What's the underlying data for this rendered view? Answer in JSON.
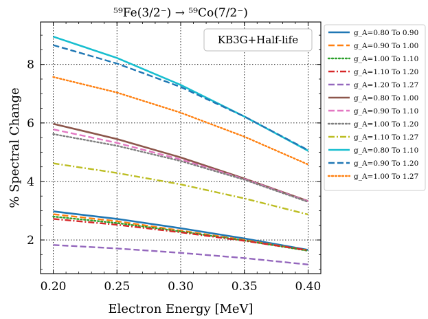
{
  "chart_data": {
    "type": "line",
    "title": "⁵⁹Fe(3/2⁻) → ⁵⁹Co(7/2⁻)",
    "xlabel": "Electron Energy [MeV]",
    "ylabel": "% Spectral Change",
    "xlim": [
      0.19,
      0.41
    ],
    "ylim": [
      0.85,
      9.45
    ],
    "xticks": [
      0.2,
      0.25,
      0.3,
      0.35,
      0.4
    ],
    "xtick_labels": [
      "0.20",
      "0.25",
      "0.30",
      "0.35",
      "0.40"
    ],
    "yticks": [
      2,
      4,
      6,
      8
    ],
    "ytick_labels": [
      "2",
      "4",
      "6",
      "8"
    ],
    "grid": true,
    "legend_position": "outside-right",
    "annotation": "KB3G+Half-life",
    "x": [
      0.2,
      0.25,
      0.3,
      0.35,
      0.4
    ],
    "series": [
      {
        "name": "g_A=0.80 To 0.90",
        "color": "#1f77b4",
        "dash": "solid",
        "values": [
          2.98,
          2.72,
          2.4,
          2.05,
          1.66
        ]
      },
      {
        "name": "g_A=0.90 To 1.00",
        "color": "#ff7f0e",
        "dash": "dashed",
        "values": [
          2.88,
          2.64,
          2.32,
          2.0,
          1.64
        ]
      },
      {
        "name": "g_A=1.00 To 1.10",
        "color": "#2ca02c",
        "dash": "dotted",
        "values": [
          2.8,
          2.58,
          2.29,
          1.98,
          1.63
        ]
      },
      {
        "name": "g_A=1.10 To 1.20",
        "color": "#d62728",
        "dash": "dashdot",
        "values": [
          2.72,
          2.52,
          2.26,
          1.97,
          1.65
        ]
      },
      {
        "name": "g_A=1.20 To 1.27",
        "color": "#9467bd",
        "dash": "dashed",
        "values": [
          1.83,
          1.71,
          1.56,
          1.38,
          1.16
        ]
      },
      {
        "name": "g_A=0.80 To 1.00",
        "color": "#8c564b",
        "dash": "solid",
        "values": [
          5.97,
          5.45,
          4.82,
          4.1,
          3.33
        ]
      },
      {
        "name": "g_A=0.90 To 1.10",
        "color": "#e377c2",
        "dash": "dashed",
        "values": [
          5.78,
          5.32,
          4.75,
          4.08,
          3.32
        ]
      },
      {
        "name": "g_A=1.00 To 1.20",
        "color": "#7f7f7f",
        "dash": "dotted",
        "values": [
          5.62,
          5.22,
          4.7,
          4.06,
          3.3
        ]
      },
      {
        "name": "g_A=1.10 To 1.27",
        "color": "#bcbd22",
        "dash": "dashdot",
        "values": [
          4.62,
          4.29,
          3.9,
          3.42,
          2.87
        ]
      },
      {
        "name": "g_A=0.80 To 1.10",
        "color": "#17becf",
        "dash": "solid",
        "values": [
          8.95,
          8.22,
          7.3,
          6.22,
          5.05
        ]
      },
      {
        "name": "g_A=0.90 To 1.20",
        "color": "#1f77b4",
        "dash": "dashed",
        "values": [
          8.66,
          8.03,
          7.23,
          6.22,
          5.07
        ]
      },
      {
        "name": "g_A=1.00 To 1.27",
        "color": "#ff7f0e",
        "dash": "dotted",
        "values": [
          7.57,
          7.04,
          6.35,
          5.53,
          4.58
        ]
      }
    ]
  }
}
